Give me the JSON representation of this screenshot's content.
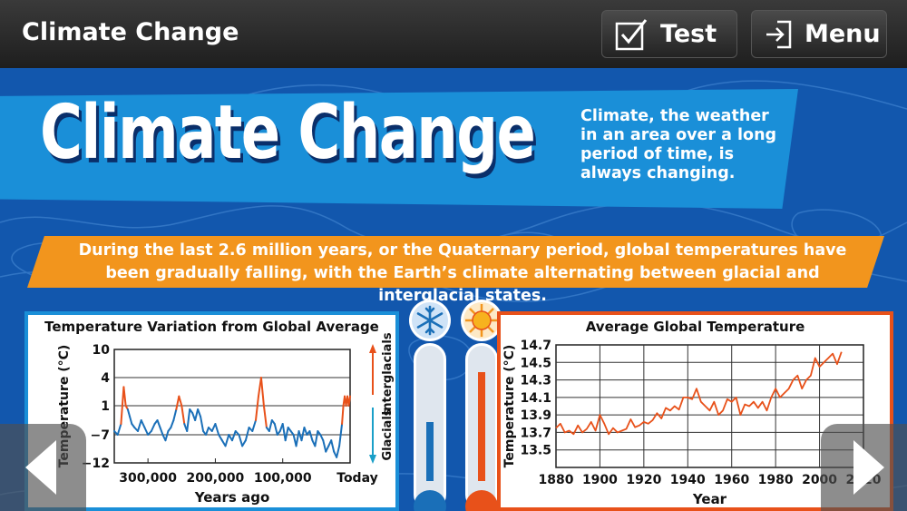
{
  "app_title": "Climate Change",
  "toolbar": {
    "test_label": "Test",
    "menu_label": "Menu"
  },
  "banner": {
    "headline": "Climate Change",
    "description": "Climate, the weather in an area over a long period of time, is always changing."
  },
  "strip": {
    "text": "During the last 2.6 million years, or the Quaternary period, global temperatures have been gradually falling, with the Earth’s climate alternating between glacial and interglacial states."
  },
  "colors": {
    "warm": "#e8511a",
    "cool": "#1a6fb8",
    "banner": "#1a8fd8",
    "strip": "#f2951d"
  },
  "icons": {
    "snowflake": "snowflake-icon",
    "sun": "sun-icon"
  },
  "chart_data": [
    {
      "type": "line",
      "title": "Temperature Variation from Global Average",
      "xlabel": "Years ago",
      "ylabel": "Temperature (°C)",
      "xticks": [
        "300,000",
        "200,000",
        "100,000",
        "Today"
      ],
      "yticks": [
        10,
        4,
        1,
        -7,
        -12
      ],
      "ylim": [
        -12,
        10
      ],
      "side_labels": {
        "up": "Interglacials",
        "down": "Glacials"
      },
      "series": [
        {
          "values_x": [
            350000,
            345000,
            340000,
            336000,
            333000,
            330000,
            327000,
            324000,
            320000,
            315000,
            310000,
            305000,
            300000,
            295000,
            290000,
            286000,
            282000,
            278000,
            274000,
            270000,
            266000,
            262000,
            258000,
            254000,
            250000,
            246000,
            242000,
            238000,
            234000,
            230000,
            226000,
            222000,
            218000,
            214000,
            210000,
            205000,
            200000,
            195000,
            190000,
            185000,
            180000,
            175000,
            170000,
            165000,
            160000,
            155000,
            150000,
            145000,
            140000,
            136000,
            132000,
            128000,
            124000,
            120000,
            116000,
            112000,
            108000,
            104000,
            100000,
            96000,
            92000,
            88000,
            84000,
            80000,
            76000,
            72000,
            68000,
            64000,
            60000,
            56000,
            52000,
            48000,
            44000,
            40000,
            36000,
            32000,
            28000,
            24000,
            20000,
            16000,
            12000,
            10000,
            8000,
            6000,
            4000,
            2000,
            0
          ],
          "values_y": [
            -6,
            -7,
            -4,
            3,
            1,
            0,
            -2,
            -4,
            -5,
            -6,
            -3,
            -5,
            -7,
            -6,
            -4,
            -3,
            -5,
            -7,
            -8,
            -6,
            -5,
            -3,
            0,
            2,
            1,
            -4,
            -6,
            0,
            -1,
            -3,
            0,
            -2,
            -6,
            -7,
            -5,
            -6,
            -4,
            -7,
            -8,
            -9,
            -7,
            -8,
            -6,
            -7,
            -9,
            -8,
            -5,
            -6,
            -3,
            2,
            4,
            1,
            -5,
            -6,
            -3,
            -4,
            -7,
            -6,
            -4,
            -8,
            -5,
            -6,
            -7,
            -9,
            -6,
            -8,
            -5,
            -7,
            -6,
            -8,
            -9,
            -6,
            -7,
            -8,
            -10,
            -9,
            -8,
            -10,
            -11,
            -9,
            -4,
            1,
            2,
            1,
            2,
            1,
            2
          ]
        }
      ]
    },
    {
      "type": "line",
      "title": "Average Global Temperature",
      "xlabel": "Year",
      "ylabel": "Temperature (°C)",
      "xticks": [
        1880,
        1900,
        1920,
        1940,
        1960,
        1980,
        2000,
        2020
      ],
      "yticks": [
        14.7,
        14.5,
        14.3,
        14.1,
        13.9,
        13.7,
        13.5
      ],
      "xlim": [
        1880,
        2020
      ],
      "ylim": [
        13.3,
        14.7
      ],
      "series": [
        {
          "x": [
            1880,
            1882,
            1884,
            1886,
            1888,
            1890,
            1892,
            1894,
            1896,
            1898,
            1900,
            1902,
            1904,
            1906,
            1908,
            1910,
            1912,
            1914,
            1916,
            1918,
            1920,
            1922,
            1924,
            1926,
            1928,
            1930,
            1932,
            1934,
            1936,
            1938,
            1940,
            1942,
            1944,
            1946,
            1948,
            1950,
            1952,
            1954,
            1956,
            1958,
            1960,
            1962,
            1964,
            1966,
            1968,
            1970,
            1972,
            1974,
            1976,
            1978,
            1980,
            1982,
            1984,
            1986,
            1988,
            1990,
            1992,
            1994,
            1996,
            1998,
            2000,
            2002,
            2004,
            2006,
            2008,
            2010
          ],
          "y": [
            13.75,
            13.8,
            13.7,
            13.72,
            13.68,
            13.78,
            13.7,
            13.74,
            13.82,
            13.72,
            13.9,
            13.8,
            13.68,
            13.75,
            13.7,
            13.72,
            13.74,
            13.85,
            13.76,
            13.78,
            13.82,
            13.8,
            13.84,
            13.92,
            13.86,
            13.98,
            13.95,
            14.0,
            13.96,
            14.1,
            14.1,
            14.08,
            14.2,
            14.05,
            14.0,
            13.95,
            14.05,
            13.9,
            13.95,
            14.08,
            14.05,
            14.1,
            13.9,
            14.02,
            14.0,
            14.05,
            13.98,
            14.05,
            13.95,
            14.1,
            14.2,
            14.1,
            14.15,
            14.2,
            14.3,
            14.35,
            14.2,
            14.3,
            14.35,
            14.55,
            14.45,
            14.5,
            14.55,
            14.6,
            14.48,
            14.62
          ]
        }
      ]
    }
  ]
}
